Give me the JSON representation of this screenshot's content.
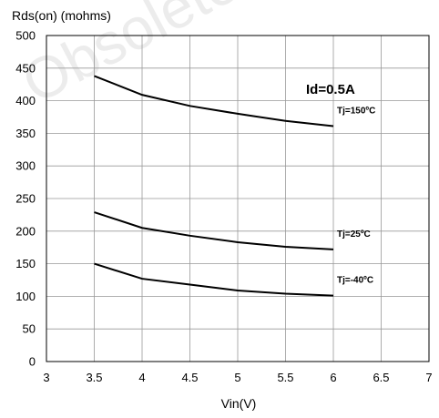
{
  "chart_data": {
    "type": "line",
    "ylabel": "Rds(on) (mohms)",
    "xlabel": "Vin(V)",
    "xlim": [
      3,
      7
    ],
    "ylim": [
      0,
      500
    ],
    "x_ticks": [
      "3",
      "3.5",
      "4",
      "4.5",
      "5",
      "5.5",
      "6",
      "6.5",
      "7"
    ],
    "y_ticks": [
      "0",
      "50",
      "100",
      "150",
      "200",
      "250",
      "300",
      "350",
      "400",
      "450",
      "500"
    ],
    "grid": true,
    "annotation": "Id=0.5A",
    "watermark": "Obsolete",
    "x": [
      3.5,
      4,
      4.5,
      5,
      5.5,
      6
    ],
    "series": [
      {
        "name": "Tj=150ºC",
        "values": [
          438,
          409,
          392,
          380,
          369,
          361
        ]
      },
      {
        "name": "Tj=25ºC",
        "values": [
          229,
          205,
          193,
          183,
          176,
          172
        ]
      },
      {
        "name": "Tj=-40ºC",
        "values": [
          150,
          127,
          118,
          109,
          104,
          101
        ]
      }
    ]
  }
}
